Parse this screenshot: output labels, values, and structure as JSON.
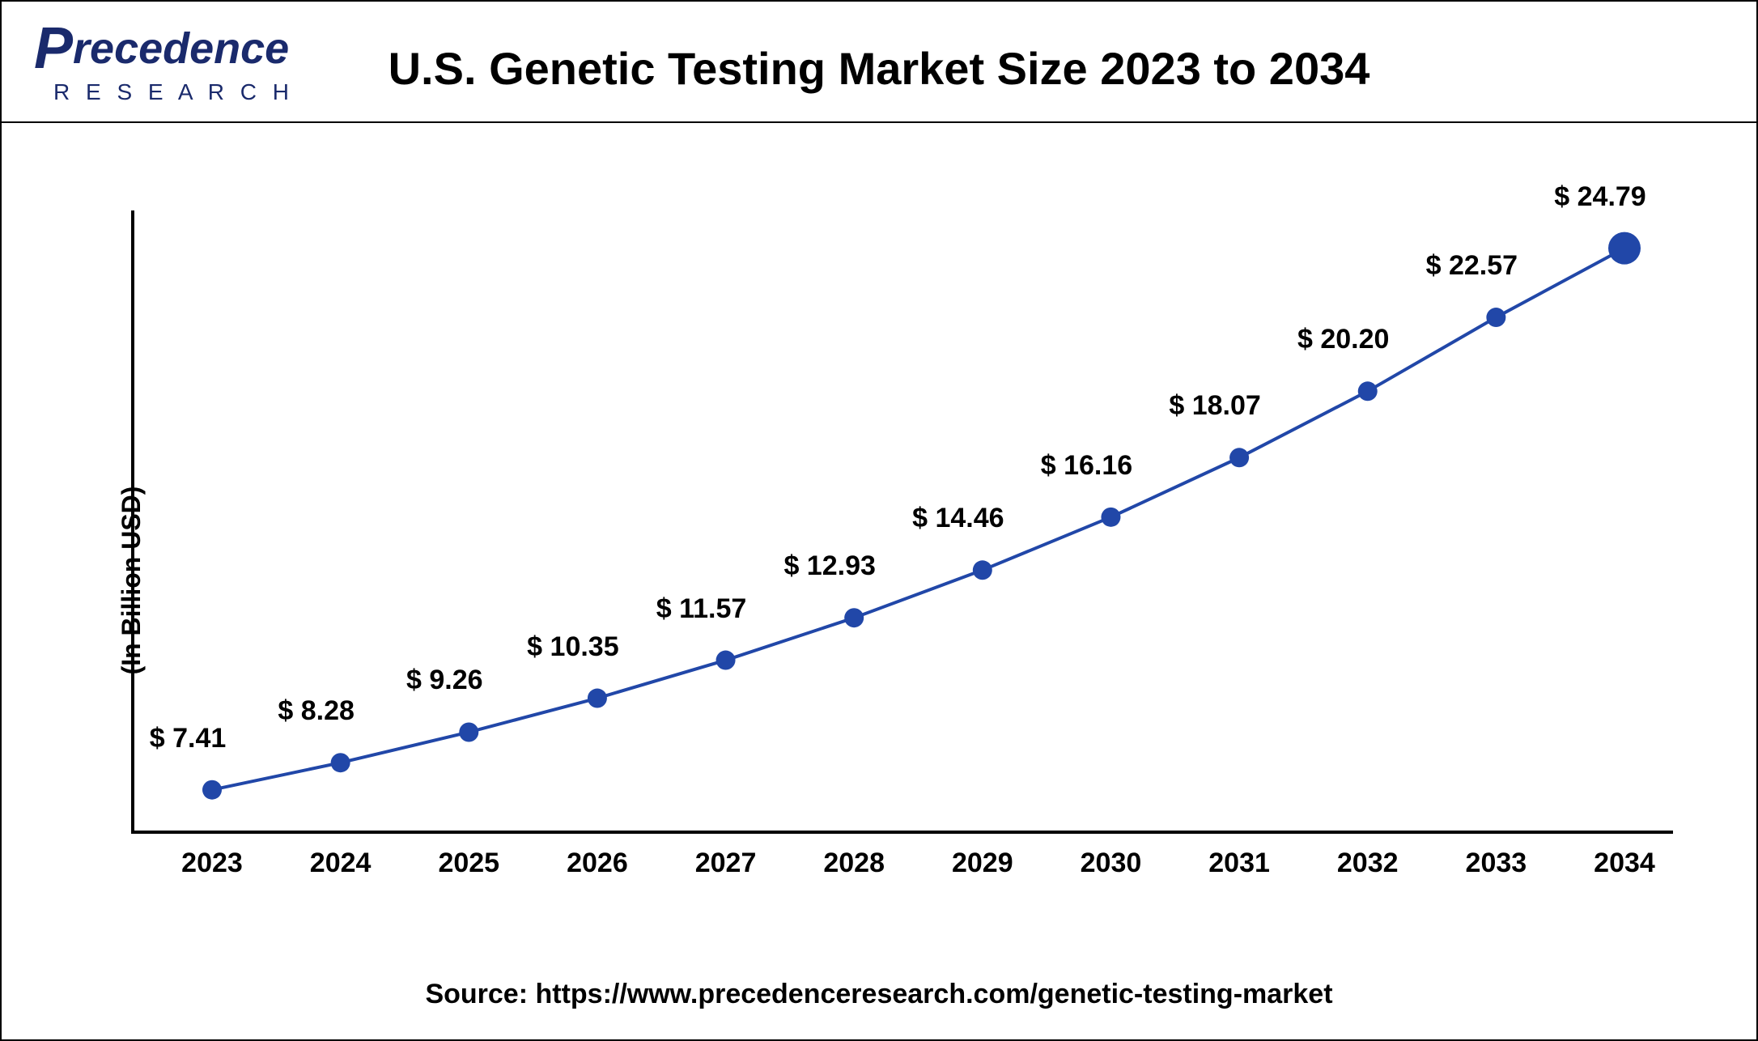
{
  "header": {
    "logo_main_prefix": "P",
    "logo_main_rest": "recedence",
    "logo_sub": "R E S E A R C H",
    "title": "U.S. Genetic Testing Market Size 2023 to 2034"
  },
  "chart": {
    "type": "line",
    "ylabel": "(In Billion USD)",
    "xlim": [
      2023,
      2034
    ],
    "ylim": [
      6,
      26
    ],
    "line_color": "#2147a8",
    "line_width": 4,
    "marker_color": "#2147a8",
    "marker_radius": 12,
    "last_marker_radius": 20,
    "axis_color": "#000000",
    "background_color": "#ffffff",
    "label_fontsize": 34,
    "label_fontweight": "700",
    "tick_fontsize": 34,
    "label_offset_y": 44,
    "categories": [
      "2023",
      "2024",
      "2025",
      "2026",
      "2027",
      "2028",
      "2029",
      "2030",
      "2031",
      "2032",
      "2033",
      "2034"
    ],
    "values": [
      7.41,
      8.28,
      9.26,
      10.35,
      11.57,
      12.93,
      14.46,
      16.16,
      18.07,
      20.2,
      22.57,
      24.79
    ],
    "value_labels": [
      "$ 7.41",
      "$ 8.28",
      "$ 9.26",
      "$ 10.35",
      "$ 11.57",
      "$ 12.93",
      "$ 14.46",
      "$ 16.16",
      "$ 18.07",
      "$ 20.20",
      "$ 22.57",
      "$ 24.79"
    ]
  },
  "footer": {
    "source": "Source: https://www.precedenceresearch.com/genetic-testing-market"
  }
}
